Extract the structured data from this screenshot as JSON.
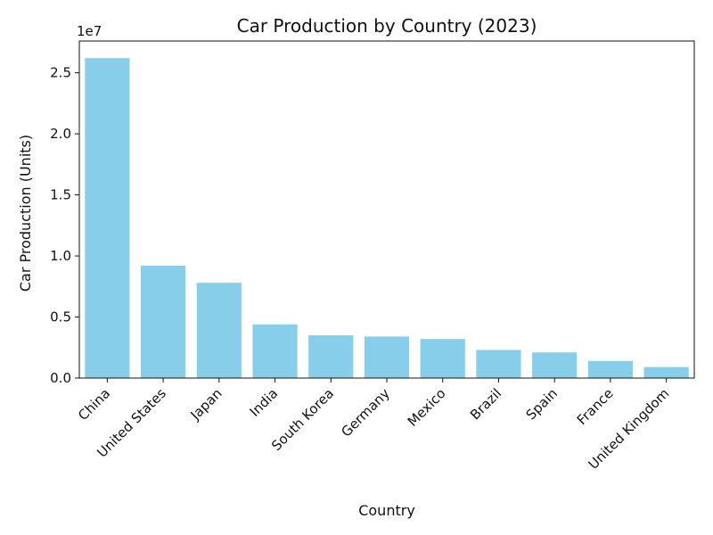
{
  "chart_data": {
    "type": "bar",
    "title": "Car Production by Country (2023)",
    "xlabel": "Country",
    "ylabel": "Car Production (Units)",
    "y_offset_label": "1e7",
    "categories": [
      "China",
      "United States",
      "Japan",
      "India",
      "South Korea",
      "Germany",
      "Mexico",
      "Brazil",
      "Spain",
      "France",
      "United Kingdom"
    ],
    "values": [
      26200000,
      9200000,
      7800000,
      4400000,
      3500000,
      3400000,
      3200000,
      2300000,
      2100000,
      1400000,
      900000
    ],
    "ylim": [
      0,
      27600000
    ],
    "yticks": [
      0,
      5000000,
      10000000,
      15000000,
      20000000,
      25000000
    ],
    "ytick_labels": [
      "0.0",
      "0.5",
      "1.0",
      "1.5",
      "2.0",
      "2.5"
    ],
    "bar_color": "#87CEEB",
    "grid": false,
    "legend": "none"
  }
}
